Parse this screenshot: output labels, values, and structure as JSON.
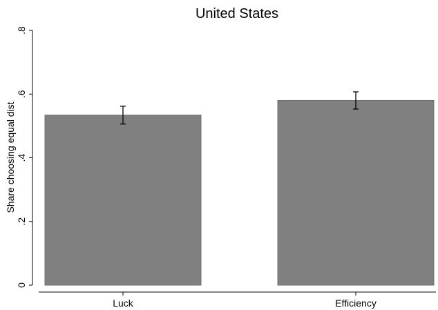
{
  "chart_data": {
    "type": "bar",
    "title": "United States",
    "xlabel": "",
    "ylabel": "Share choosing equal dist",
    "categories": [
      "Luck",
      "Efficiency"
    ],
    "values": [
      0.534,
      0.58
    ],
    "error_bars": [
      {
        "low": 0.506,
        "high": 0.562
      },
      {
        "low": 0.553,
        "high": 0.607
      }
    ],
    "yticks": [
      0,
      0.2,
      0.4,
      0.6,
      0.8
    ],
    "ytick_labels": [
      "0",
      ".2",
      ".4",
      ".6",
      ".8"
    ],
    "ylim": [
      0,
      0.8
    ],
    "grid": false,
    "legend": false,
    "colors": {
      "bar_fill": "#808080",
      "bar_stroke": "#6f6f6f",
      "axis": "#000000",
      "error_bar": "#000000"
    }
  }
}
